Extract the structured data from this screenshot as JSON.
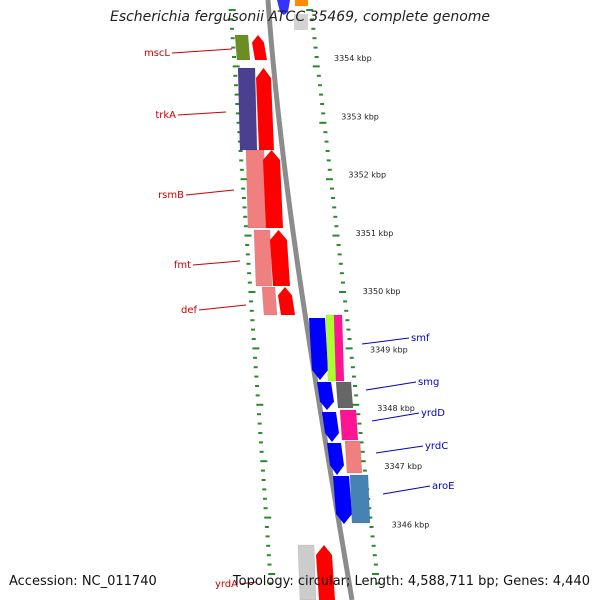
{
  "title": "Escherichia fergusonii ATCC 35469, complete genome",
  "accession": "Accession: NC_011740",
  "topology": "Topology: circular; Length: 4,588,711 bp; Genes: 4,440",
  "colors": {
    "backbone": "#8c8c8c",
    "dotted_tick": "#2a8a2a",
    "label_red": "#cc0000",
    "label_blue": "#0000cc",
    "strand_forward": "#ff0000",
    "strand_reverse": "#0000ff"
  },
  "kbp_markers": [
    "3354 kbp",
    "3353 kbp",
    "3352 kbp",
    "3351 kbp",
    "3350 kbp",
    "3349 kbp",
    "3348 kbp",
    "3347 kbp",
    "3346 kbp"
  ],
  "genes_left": [
    {
      "name": "mscL",
      "color": "#6b8e23"
    },
    {
      "name": "trkA",
      "color": "#4b3f8f"
    },
    {
      "name": "rsmB",
      "color": "#f08080"
    },
    {
      "name": "fmt",
      "color": "#f08080"
    },
    {
      "name": "def",
      "color": "#f08080"
    },
    {
      "name": "yrdA",
      "color": "#cccccc"
    }
  ],
  "genes_right": [
    {
      "name": "smf",
      "color": "#ff1493"
    },
    {
      "name": "smg",
      "color": "#666666"
    },
    {
      "name": "yrdD",
      "color": "#ff1493"
    },
    {
      "name": "yrdC",
      "color": "#f08080"
    },
    {
      "name": "aroE",
      "color": "#4682b4"
    }
  ]
}
